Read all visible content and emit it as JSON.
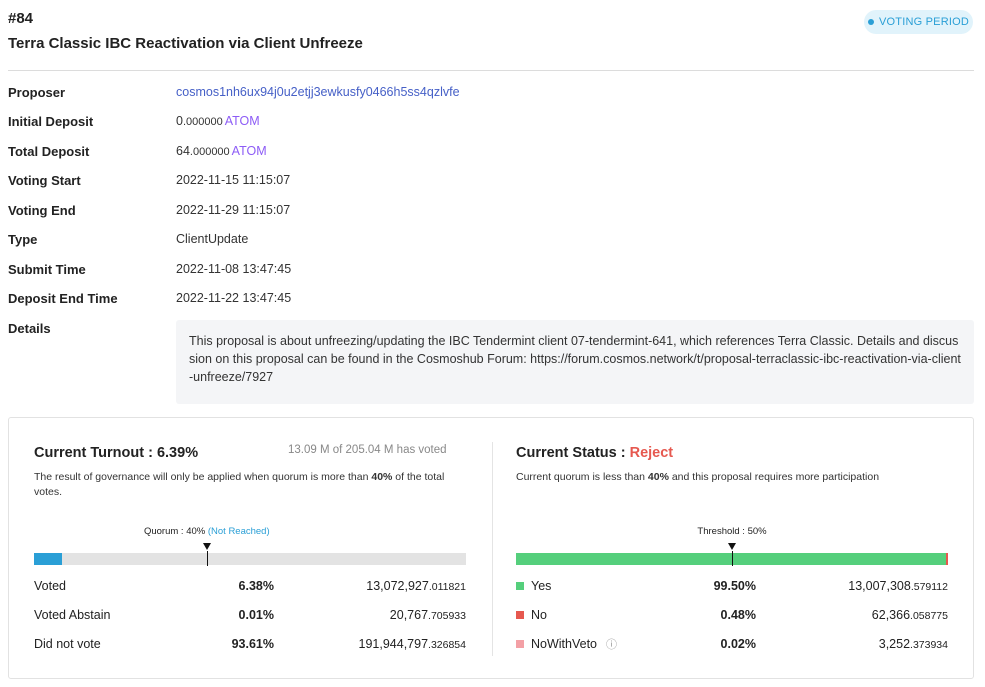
{
  "header": {
    "number": "#84",
    "title": "Terra Classic IBC Reactivation via Client Unfreeze",
    "status": "VOTING PERIOD"
  },
  "info": {
    "proposer": {
      "label": "Proposer",
      "value": "cosmos1nh6ux94j0u2etjj3ewkusfy0466h5ss4qzlvfe"
    },
    "initial_deposit": {
      "label": "Initial Deposit",
      "int": "0",
      "frac": ".000000",
      "denom": "ATOM"
    },
    "total_deposit": {
      "label": "Total Deposit",
      "int": "64",
      "frac": ".000000",
      "denom": "ATOM"
    },
    "voting_start": {
      "label": "Voting Start",
      "value": "2022-11-15 11:15:07"
    },
    "voting_end": {
      "label": "Voting End",
      "value": "2022-11-29 11:15:07"
    },
    "type": {
      "label": "Type",
      "value": "ClientUpdate"
    },
    "submit_time": {
      "label": "Submit Time",
      "value": "2022-11-08 13:47:45"
    },
    "deposit_end_time": {
      "label": "Deposit End Time",
      "value": "2022-11-22 13:47:45"
    },
    "details": {
      "label": "Details",
      "value": "This proposal is about unfreezing/updating the IBC Tendermint client 07-tendermint-641, which references Terra Classic. Details and discussion on this proposal can be found in the Cosmoshub Forum: https://forum.cosmos.network/t/proposal-terraclassic-ibc-reactivation-via-client-unfreeze/7927"
    }
  },
  "turnout": {
    "title_prefix": "Current Turnout : ",
    "title_value": "6.39%",
    "caption": "13.09 M of 205.04 M has voted",
    "note_prefix": "The result of governance will only be applied when quorum is more than ",
    "note_bold": "40%",
    "note_suffix": " of the total votes.",
    "quorum_label": "Quorum : 40%",
    "quorum_status": "(Not Reached)",
    "quorum_fraction": 0.4,
    "voted_fraction": 0.0639,
    "bar_color": "#2a9fd6",
    "rows": [
      {
        "label": "Voted",
        "pct": "6.38%",
        "int": "13,072,927",
        "frac": ".011821"
      },
      {
        "label": "Voted Abstain",
        "pct": "0.01%",
        "int": "20,767",
        "frac": ".705933"
      },
      {
        "label": "Did not vote",
        "pct": "93.61%",
        "int": "191,944,797",
        "frac": ".326854"
      }
    ]
  },
  "status": {
    "title_prefix": "Current Status : ",
    "title_value": "Reject",
    "note_prefix": "Current quorum is less than ",
    "note_bold": "40%",
    "note_suffix": " and this proposal requires more participation",
    "threshold_label": "Threshold : 50%",
    "threshold_fraction": 0.5,
    "yes_fraction": 0.995,
    "no_fraction": 0.0048,
    "veto_fraction": 0.0002,
    "colors": {
      "yes": "#55cf7c",
      "no": "#e6584f",
      "veto": "#f3a0a5",
      "reject": "#e6584f"
    },
    "rows": [
      {
        "label": "Yes",
        "pct": "99.50%",
        "int": "13,007,308",
        "frac": ".579112"
      },
      {
        "label": "No",
        "pct": "0.48%",
        "int": "62,366",
        "frac": ".058775"
      },
      {
        "label": "NoWithVeto",
        "pct": "0.02%",
        "int": "3,252",
        "frac": ".373934"
      }
    ]
  }
}
